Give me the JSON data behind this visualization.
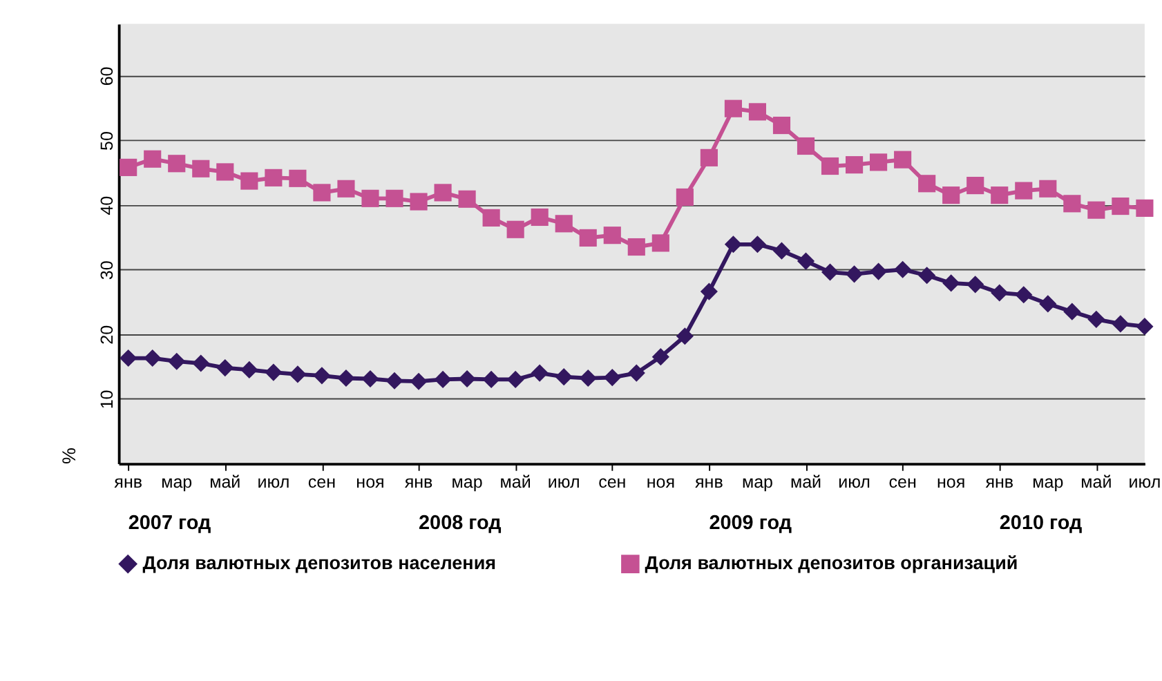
{
  "chart_data": {
    "type": "line",
    "ylabel": "%",
    "categories": [
      "янв",
      null,
      "мар",
      null,
      "май",
      null,
      "июл",
      null,
      "сен",
      null,
      "ноя",
      null,
      "янв",
      null,
      "мар",
      null,
      "май",
      null,
      "июл",
      null,
      "сен",
      null,
      "ноя",
      null,
      "янв",
      null,
      "мар",
      null,
      "май",
      null,
      "июл",
      null,
      "сен",
      null,
      "ноя",
      null,
      "янв",
      null,
      "мар",
      null,
      "май",
      null,
      "июл"
    ],
    "series": [
      {
        "name": "Доля валютных депозитов населения",
        "color": "#33175f",
        "marker": "diamond",
        "values": [
          16.3,
          16.3,
          15.8,
          15.5,
          14.8,
          14.5,
          14.1,
          13.8,
          13.6,
          13.2,
          13.1,
          12.8,
          12.7,
          13.0,
          13.1,
          13.0,
          13.0,
          14.0,
          13.4,
          13.2,
          13.3,
          14.0,
          16.5,
          19.7,
          26.6,
          33.9,
          33.9,
          32.9,
          31.3,
          29.6,
          29.3,
          29.7,
          30.0,
          29.1,
          27.9,
          27.7,
          26.4,
          26.1,
          24.7,
          23.5,
          22.3,
          21.6,
          21.2
        ]
      },
      {
        "name": "Доля валютных депозитов организаций",
        "color": "#c55193",
        "marker": "square",
        "values": [
          45.8,
          47.1,
          46.4,
          45.6,
          45.1,
          43.7,
          44.2,
          44.1,
          41.9,
          42.5,
          41.0,
          41.0,
          40.5,
          41.9,
          40.9,
          38.0,
          36.2,
          38.1,
          37.1,
          34.9,
          35.3,
          33.5,
          34.1,
          41.2,
          47.3,
          54.9,
          54.4,
          52.3,
          49.1,
          46.0,
          46.2,
          46.6,
          47.0,
          43.3,
          41.5,
          43.0,
          41.5,
          42.2,
          42.5,
          40.2,
          39.2,
          39.8,
          39.5
        ]
      }
    ],
    "ylim": [
      0,
      68
    ],
    "yticks": [
      10,
      20,
      30,
      40,
      50,
      60
    ],
    "grid": "y",
    "legend": "bottom",
    "line_style": "solid",
    "annotations": [
      "2007 год",
      "2008 год",
      "2009 год",
      "2010 год"
    ]
  }
}
